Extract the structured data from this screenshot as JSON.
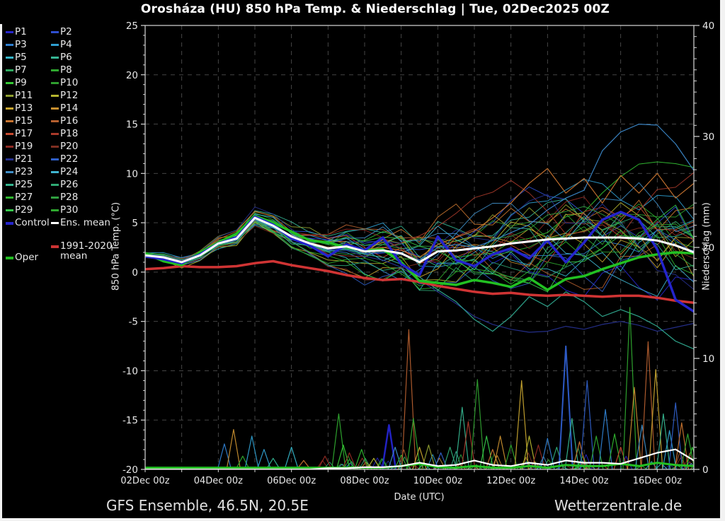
{
  "title": "Orosháza  (HU)  850 hPa Temp. & Niederschlag | Tue, 02Dec2025 00Z",
  "footer": {
    "left": "GFS Ensemble, 46.5N, 20.5E",
    "right": "Wetterzentrale.de"
  },
  "axes": {
    "left_label": "850 hPa Temp. (°C)",
    "right_label": "Niederschlag (mm)",
    "x_label": "Date (UTC)",
    "ylim_left": [
      -20,
      25
    ],
    "yticks_left": [
      25,
      20,
      15,
      10,
      5,
      0,
      -5,
      -10,
      -15,
      -20
    ],
    "ylim_right": [
      0,
      40
    ],
    "yticks_right": [
      40,
      30,
      20,
      10,
      0
    ],
    "x_range_hours": [
      0,
      360
    ],
    "x_tick_hours": [
      0,
      48,
      96,
      144,
      192,
      240,
      288,
      336
    ],
    "x_tick_labels": [
      "02Dec 00z",
      "04Dec 00z",
      "06Dec 00z",
      "08Dec 00z",
      "10Dec 00z",
      "12Dec 00z",
      "14Dec 00z",
      "16Dec 00z"
    ],
    "grid": "dashed, every 5 °C horizontal, every 24 h vertical"
  },
  "legend": {
    "members": [
      {
        "label": "P1",
        "color": "#2626cd"
      },
      {
        "label": "P2",
        "color": "#2f4fd0"
      },
      {
        "label": "P3",
        "color": "#2f7fd0"
      },
      {
        "label": "P4",
        "color": "#2f9fd0"
      },
      {
        "label": "P5",
        "color": "#35b5c8"
      },
      {
        "label": "P6",
        "color": "#35b593"
      },
      {
        "label": "P7",
        "color": "#2fa95f"
      },
      {
        "label": "P8",
        "color": "#2fa92f"
      },
      {
        "label": "P9",
        "color": "#35c835"
      },
      {
        "label": "P10",
        "color": "#2f9f2f"
      },
      {
        "label": "P11",
        "color": "#8f9f2f"
      },
      {
        "label": "P12",
        "color": "#b5b52f"
      },
      {
        "label": "P13",
        "color": "#c8a52f"
      },
      {
        "label": "P14",
        "color": "#c88f2f"
      },
      {
        "label": "P15",
        "color": "#c8742f"
      },
      {
        "label": "P16",
        "color": "#b55f2f"
      },
      {
        "label": "P17",
        "color": "#c84a2f"
      },
      {
        "label": "P18",
        "color": "#a93a2a"
      },
      {
        "label": "P19",
        "color": "#8f2a22"
      },
      {
        "label": "P20",
        "color": "#7f2f22"
      },
      {
        "label": "P21",
        "color": "#26308f"
      },
      {
        "label": "P22",
        "color": "#2f5fc8"
      },
      {
        "label": "P23",
        "color": "#3f8fc8"
      },
      {
        "label": "P24",
        "color": "#3fb5d0"
      },
      {
        "label": "P25",
        "color": "#35b58f"
      },
      {
        "label": "P26",
        "color": "#2fa974"
      },
      {
        "label": "P27",
        "color": "#2fb52f"
      },
      {
        "label": "P28",
        "color": "#2f9f3f"
      },
      {
        "label": "P29",
        "color": "#35c84a"
      },
      {
        "label": "P30",
        "color": "#2fa92f"
      }
    ],
    "control": {
      "label": "Control",
      "color": "#2424cc"
    },
    "ens_mean": {
      "label": "Ens. mean",
      "color": "#ffffff"
    },
    "clim_mean": {
      "label_line1": "1991-2020",
      "label_line2": "mean",
      "color": "#cc3434"
    },
    "oper": {
      "label": "Oper",
      "color": "#22bb22"
    }
  },
  "chart_data": {
    "type": "line",
    "title": "Orosháza (HU) 850 hPa Temp. & Niederschlag | Tue, 02Dec2025 00Z",
    "xlabel": "Date (UTC)",
    "ylabel_left": "850 hPa Temp. (°C)",
    "ylabel_right": "Niederschlag (mm)",
    "x_hours": [
      0,
      12,
      24,
      36,
      48,
      60,
      72,
      84,
      96,
      108,
      120,
      132,
      144,
      156,
      168,
      180,
      192,
      204,
      216,
      228,
      240,
      252,
      264,
      276,
      288,
      300,
      312,
      324,
      336,
      348,
      360
    ],
    "series": {
      "ens_mean": {
        "color": "#ffffff",
        "width": 3,
        "values": [
          1.7,
          1.5,
          1.0,
          1.7,
          2.9,
          3.4,
          5.5,
          4.7,
          3.6,
          2.9,
          2.4,
          2.6,
          2.1,
          2.2,
          1.9,
          1.0,
          2.1,
          2.2,
          2.4,
          2.6,
          2.9,
          3.1,
          3.3,
          3.4,
          3.5,
          3.5,
          3.5,
          3.4,
          3.2,
          2.7,
          2.0
        ]
      },
      "control": {
        "color": "#2424cc",
        "width": 3.5,
        "values": [
          1.6,
          1.3,
          0.9,
          1.8,
          2.9,
          3.5,
          5.6,
          4.8,
          3.4,
          2.7,
          1.6,
          2.8,
          2.2,
          3.5,
          0.8,
          -0.3,
          3.6,
          1.2,
          0.6,
          1.8,
          2.4,
          1.4,
          3.2,
          1.0,
          3.0,
          5.3,
          6.1,
          5.3,
          2.3,
          -2.8,
          -4.0
        ]
      },
      "oper": {
        "color": "#22c022",
        "width": 3.5,
        "values": [
          1.9,
          1.1,
          0.7,
          2.0,
          3.0,
          3.9,
          5.7,
          5.0,
          4.1,
          3.2,
          3.0,
          2.5,
          2.2,
          2.3,
          1.0,
          -0.9,
          -1.1,
          -1.3,
          -0.8,
          -1.1,
          -1.5,
          -0.6,
          -1.8,
          -0.7,
          -0.4,
          0.3,
          0.9,
          1.5,
          1.8,
          2.0,
          1.9
        ]
      },
      "clim_mean": {
        "color": "#d03434",
        "width": 3.5,
        "values": [
          0.3,
          0.4,
          0.6,
          0.5,
          0.5,
          0.6,
          0.9,
          1.1,
          0.7,
          0.4,
          0.1,
          -0.3,
          -0.6,
          -0.8,
          -0.7,
          -1.0,
          -1.4,
          -1.7,
          -2.0,
          -2.2,
          -2.1,
          -2.3,
          -2.4,
          -2.3,
          -2.4,
          -2.5,
          -2.4,
          -2.4,
          -2.6,
          -2.9,
          -3.1
        ]
      },
      "mean_precip": {
        "color": "#ffffff",
        "width": 2.2,
        "values": [
          0,
          0,
          0,
          0,
          0,
          0,
          0,
          0,
          0,
          0,
          0.1,
          0.1,
          0.2,
          0.2,
          0.3,
          0.6,
          0.3,
          0.4,
          0.8,
          0.4,
          0.3,
          0.6,
          0.4,
          0.8,
          0.6,
          0.6,
          0.5,
          1.0,
          1.5,
          1.8,
          0.8
        ]
      },
      "oper_precip": {
        "color": "#22c022",
        "width": 3,
        "values": [
          0.15,
          0.15,
          0.15,
          0.15,
          0.15,
          0.15,
          0.15,
          0.15,
          0.15,
          0.15,
          0.15,
          0.15,
          0.15,
          0.15,
          0.3,
          0.5,
          0.2,
          0.15,
          0.3,
          0.15,
          0.15,
          0.3,
          0.15,
          0.4,
          0.3,
          0.3,
          0.5,
          0.3,
          0.6,
          0.4,
          0.3
        ]
      }
    },
    "feature_members": [
      {
        "name": "warm-blue-member",
        "color": "#3b87c8",
        "values": [
          1.5,
          1.4,
          0.9,
          1.6,
          2.8,
          3.3,
          5.3,
          4.5,
          3.4,
          2.7,
          2.2,
          2.4,
          1.9,
          2.0,
          1.8,
          1.2,
          2.5,
          2.8,
          2.5,
          3.2,
          4.0,
          4.8,
          6.3,
          7.5,
          8.3,
          12.3,
          14.2,
          15.0,
          14.9,
          13.0,
          10.3
        ]
      },
      {
        "name": "warm-orange-member",
        "color": "#c8742f",
        "values": [
          1.7,
          1.6,
          1.1,
          1.8,
          3.0,
          3.5,
          5.5,
          4.8,
          3.7,
          3.0,
          2.5,
          2.7,
          2.3,
          2.5,
          2.2,
          1.5,
          2.8,
          3.5,
          4.2,
          5.5,
          7.0,
          9.0,
          10.5,
          8.0,
          9.5,
          7.0,
          9.8,
          8.0,
          10.0,
          7.5,
          9.0
        ]
      },
      {
        "name": "cold-navy-member",
        "color": "#26308f",
        "values": [
          1.8,
          1.6,
          1.1,
          1.8,
          3.0,
          3.5,
          5.6,
          4.8,
          3.7,
          3.0,
          2.3,
          2.2,
          1.6,
          1.2,
          0.5,
          -0.8,
          -2.0,
          -3.2,
          -4.5,
          -5.3,
          -5.8,
          -6.1,
          -6.0,
          -5.5,
          -5.8,
          -5.3,
          -5.0,
          -5.4,
          -6.0,
          -5.6,
          -5.2
        ]
      },
      {
        "name": "cold-teal-member",
        "color": "#2fa98f",
        "values": [
          1.6,
          1.5,
          1.0,
          1.7,
          2.9,
          3.4,
          5.4,
          4.6,
          3.5,
          2.8,
          2.1,
          2.3,
          1.8,
          1.5,
          0.8,
          -0.5,
          -1.8,
          -3.0,
          -4.8,
          -6.0,
          -4.5,
          -2.5,
          -3.5,
          -2.0,
          -3.0,
          -4.5,
          -3.8,
          -4.5,
          -5.5,
          -7.0,
          -7.8
        ]
      }
    ],
    "ensemble": {
      "count": 30,
      "seed": 42,
      "spread_profile": [
        0.4,
        0.5,
        0.6,
        0.6,
        0.7,
        0.8,
        0.9,
        1.0,
        1.2,
        1.4,
        1.6,
        1.9,
        2.2,
        2.5,
        2.8,
        3.1,
        3.4,
        3.6,
        3.8,
        4.0,
        4.1,
        4.2,
        4.3,
        4.4,
        4.5,
        4.6,
        4.7,
        4.8,
        5.0,
        5.2,
        5.4
      ]
    },
    "precip_spikes": [
      [
        52,
        2.3,
        "#2f7fd0"
      ],
      [
        58,
        3.6,
        "#c88f2f"
      ],
      [
        64,
        1.2,
        "#2fa92f"
      ],
      [
        70,
        3.0,
        "#2f9fd0"
      ],
      [
        78,
        1.8,
        "#2f9fd0"
      ],
      [
        84,
        1.0,
        "#35b593"
      ],
      [
        96,
        2.0,
        "#35b5c8"
      ],
      [
        104,
        0.8,
        "#c8742f"
      ],
      [
        118,
        1.2,
        "#8f2a22"
      ],
      [
        127,
        5.0,
        "#2fa92f"
      ],
      [
        130,
        2.2,
        "#35c835"
      ],
      [
        134,
        1.5,
        "#8f2a22"
      ],
      [
        142,
        1.8,
        "#2fb52f"
      ],
      [
        150,
        1.0,
        "#b5b52f"
      ],
      [
        160,
        4.0,
        "#2424cc",
        2.5
      ],
      [
        164,
        2.0,
        "#3f8fc8"
      ],
      [
        168,
        1.3,
        "#2fa92f"
      ],
      [
        173,
        12.6,
        "#b55f2f"
      ],
      [
        176,
        4.6,
        "#2fa92f"
      ],
      [
        180,
        2.0,
        "#c8a52f"
      ],
      [
        186,
        2.2,
        "#8f9f2f"
      ],
      [
        194,
        1.5,
        "#2f5fc8"
      ],
      [
        200,
        2.0,
        "#2fa974"
      ],
      [
        208,
        5.6,
        "#35b58f"
      ],
      [
        212,
        4.3,
        "#a93a2a"
      ],
      [
        218,
        8.1,
        "#2f9f2f"
      ],
      [
        224,
        3.0,
        "#35c84a"
      ],
      [
        228,
        1.8,
        "#c8742f"
      ],
      [
        233,
        3.0,
        "#c88f2f"
      ],
      [
        240,
        2.2,
        "#2fa92f"
      ],
      [
        247,
        8.0,
        "#c8a52f"
      ],
      [
        252,
        3.0,
        "#b5b52f"
      ],
      [
        258,
        2.2,
        "#8f2a22"
      ],
      [
        264,
        2.8,
        "#2f7fd0"
      ],
      [
        270,
        2.0,
        "#2fa974"
      ],
      [
        276,
        11.1,
        "#2f5fd0",
        2
      ],
      " ",
      [
        280,
        4.6,
        "#35b58f"
      ],
      [
        285,
        2.5,
        "#c8742f"
      ],
      [
        290,
        8.0,
        "#2f5fc8"
      ],
      [
        296,
        3.0,
        "#2fa92f"
      ],
      [
        302,
        5.4,
        "#2f7fd0"
      ],
      [
        308,
        3.2,
        "#2fb52f"
      ],
      [
        312,
        2.0,
        "#c84a2f"
      ],
      [
        318,
        14.6,
        "#2fa92f"
      ],
      [
        321,
        7.4,
        "#c88f2f"
      ],
      [
        326,
        4.0,
        "#3f8fc8"
      ],
      [
        330,
        11.5,
        "#b55f2f"
      ],
      [
        335,
        9.0,
        "#c8a52f"
      ],
      [
        340,
        5.0,
        "#35b58f"
      ],
      [
        344,
        3.5,
        "#2f9fd0"
      ],
      [
        348,
        6.0,
        "#2f5fc8"
      ],
      [
        352,
        4.2,
        "#c8742f"
      ],
      [
        356,
        3.2,
        "#2fa92f"
      ],
      [
        359,
        2.0,
        "#35c835"
      ]
    ]
  }
}
